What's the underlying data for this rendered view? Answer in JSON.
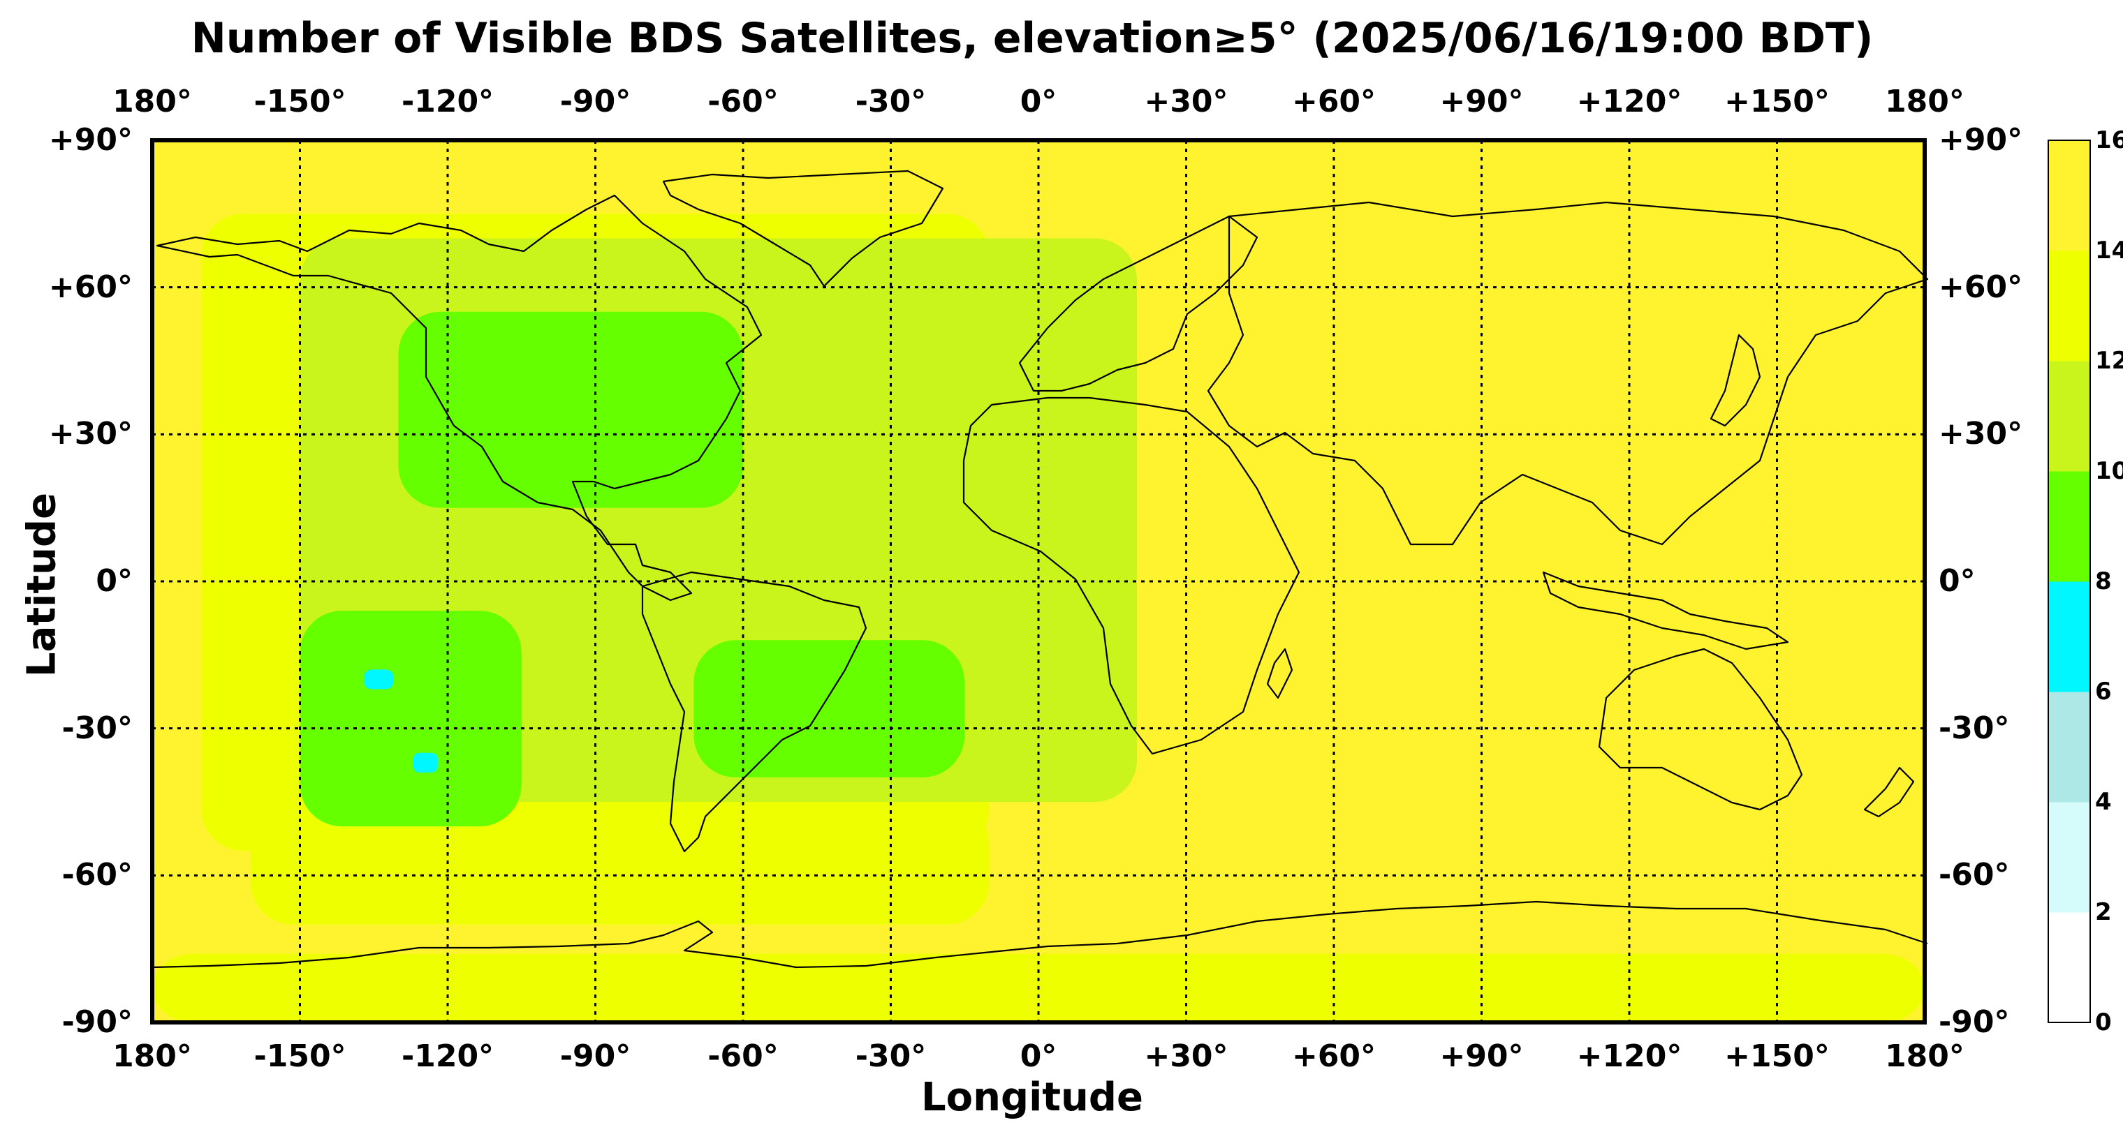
{
  "title": "Number of Visible BDS Satellites, elevation≥5° (2025/06/16/19:00 BDT)",
  "xlabel": "Longitude",
  "ylabel": "Latitude",
  "x_ticks": [
    "180°",
    "-150°",
    "-120°",
    "-90°",
    "-60°",
    "-30°",
    "0°",
    "+30°",
    "+60°",
    "+90°",
    "+120°",
    "+150°",
    "180°"
  ],
  "y_ticks": [
    "+90°",
    "+60°",
    "+30°",
    "0°",
    "-30°",
    "-60°",
    "-90°"
  ],
  "colorbar": {
    "ticks": [
      "0",
      "2",
      "4",
      "6",
      "8",
      "10",
      "12",
      "14",
      "16"
    ],
    "colors": [
      "#ffffff",
      "#d6fbfb",
      "#aee8e6",
      "#00f7ff",
      "#66ff00",
      "#c9f51c",
      "#eeff00",
      "#fff22e"
    ]
  },
  "chart_data": {
    "type": "heatmap",
    "title": "Number of Visible BDS Satellites, elevation≥5° (2025/06/16/19:00 BDT)",
    "xlabel": "Longitude",
    "ylabel": "Latitude",
    "xlim": [
      -180,
      180
    ],
    "ylim": [
      -90,
      90
    ],
    "grid": true,
    "colorbar_range": [
      0,
      16
    ],
    "background_value": 15,
    "regions": [
      {
        "name": "",
        "lon": [
          -180,
          180
        ],
        "lat": [
          -90,
          -76
        ],
        "value": 13
      },
      {
        "name": "",
        "lon": [
          -160,
          -10
        ],
        "lat": [
          -70,
          -45
        ],
        "value": 13
      },
      {
        "name": "",
        "lon": [
          -170,
          -10
        ],
        "lat": [
          -55,
          75
        ],
        "value": 13
      },
      {
        "name": "",
        "lon": [
          -150,
          20
        ],
        "lat": [
          -45,
          70
        ],
        "value": 11
      },
      {
        "name": "",
        "lon": [
          -130,
          -60
        ],
        "lat": [
          15,
          55
        ],
        "value": 9
      },
      {
        "name": "",
        "lon": [
          -150,
          -105
        ],
        "lat": [
          -50,
          -6
        ],
        "value": 9
      },
      {
        "name": "",
        "lon": [
          -70,
          -15
        ],
        "lat": [
          -40,
          -12
        ],
        "value": 9
      },
      {
        "name": "",
        "lon": [
          -137,
          -131
        ],
        "lat": [
          -22,
          -18
        ],
        "value": 7
      },
      {
        "name": "",
        "lon": [
          -127,
          -122
        ],
        "lat": [
          -39,
          -35
        ],
        "value": 7
      }
    ]
  }
}
